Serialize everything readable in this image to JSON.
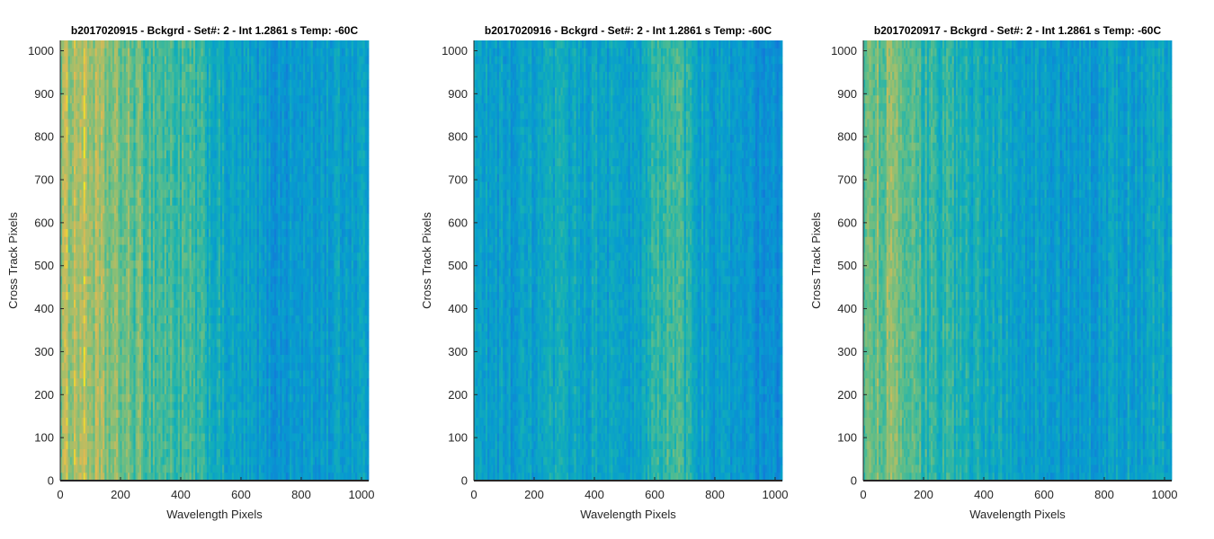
{
  "chart_data": [
    {
      "type": "heatmap",
      "title": "b2017020915 - Bckgrd - Set#: 2 - Int 1.2861 s Temp: -60C",
      "xlabel": "Wavelength Pixels",
      "ylabel": "Cross Track Pixels",
      "xlim": [
        0,
        1024
      ],
      "ylim": [
        0,
        1024
      ],
      "xticks": [
        0,
        200,
        400,
        600,
        800,
        1000
      ],
      "yticks": [
        0,
        100,
        200,
        300,
        400,
        500,
        600,
        700,
        800,
        900,
        1000
      ],
      "colormap": "parula",
      "column_profile": [
        {
          "x": 0,
          "level": 0.8
        },
        {
          "x": 60,
          "level": 0.86
        },
        {
          "x": 150,
          "level": 0.76
        },
        {
          "x": 300,
          "level": 0.68
        },
        {
          "x": 450,
          "level": 0.62
        },
        {
          "x": 550,
          "level": 0.5
        },
        {
          "x": 700,
          "level": 0.42
        },
        {
          "x": 850,
          "level": 0.45
        },
        {
          "x": 1024,
          "level": 0.5
        }
      ]
    },
    {
      "type": "heatmap",
      "title": "b2017020916 - Bckgrd - Set#: 2 - Int 1.2861 s Temp: -60C",
      "xlabel": "Wavelength Pixels",
      "ylabel": "Cross Track Pixels",
      "xlim": [
        0,
        1024
      ],
      "ylim": [
        0,
        1024
      ],
      "xticks": [
        0,
        200,
        400,
        600,
        800,
        1000
      ],
      "yticks": [
        0,
        100,
        200,
        300,
        400,
        500,
        600,
        700,
        800,
        900,
        1000
      ],
      "colormap": "parula",
      "column_profile": [
        {
          "x": 0,
          "level": 0.48
        },
        {
          "x": 150,
          "level": 0.45
        },
        {
          "x": 300,
          "level": 0.52
        },
        {
          "x": 450,
          "level": 0.5
        },
        {
          "x": 520,
          "level": 0.44
        },
        {
          "x": 650,
          "level": 0.68
        },
        {
          "x": 750,
          "level": 0.5
        },
        {
          "x": 900,
          "level": 0.4
        },
        {
          "x": 1024,
          "level": 0.38
        }
      ]
    },
    {
      "type": "heatmap",
      "title": "b2017020917 - Bckgrd - Set#: 2 - Int 1.2861 s Temp: -60C",
      "xlabel": "Wavelength Pixels",
      "ylabel": "Cross Track Pixels",
      "xlim": [
        0,
        1024
      ],
      "ylim": [
        0,
        1024
      ],
      "xticks": [
        0,
        200,
        400,
        600,
        800,
        1000
      ],
      "yticks": [
        0,
        100,
        200,
        300,
        400,
        500,
        600,
        700,
        800,
        900,
        1000
      ],
      "colormap": "parula",
      "column_profile": [
        {
          "x": 0,
          "level": 0.7
        },
        {
          "x": 80,
          "level": 0.75
        },
        {
          "x": 200,
          "level": 0.62
        },
        {
          "x": 350,
          "level": 0.56
        },
        {
          "x": 500,
          "level": 0.5
        },
        {
          "x": 650,
          "level": 0.44
        },
        {
          "x": 800,
          "level": 0.46
        },
        {
          "x": 950,
          "level": 0.5
        },
        {
          "x": 1024,
          "level": 0.52
        }
      ]
    }
  ]
}
